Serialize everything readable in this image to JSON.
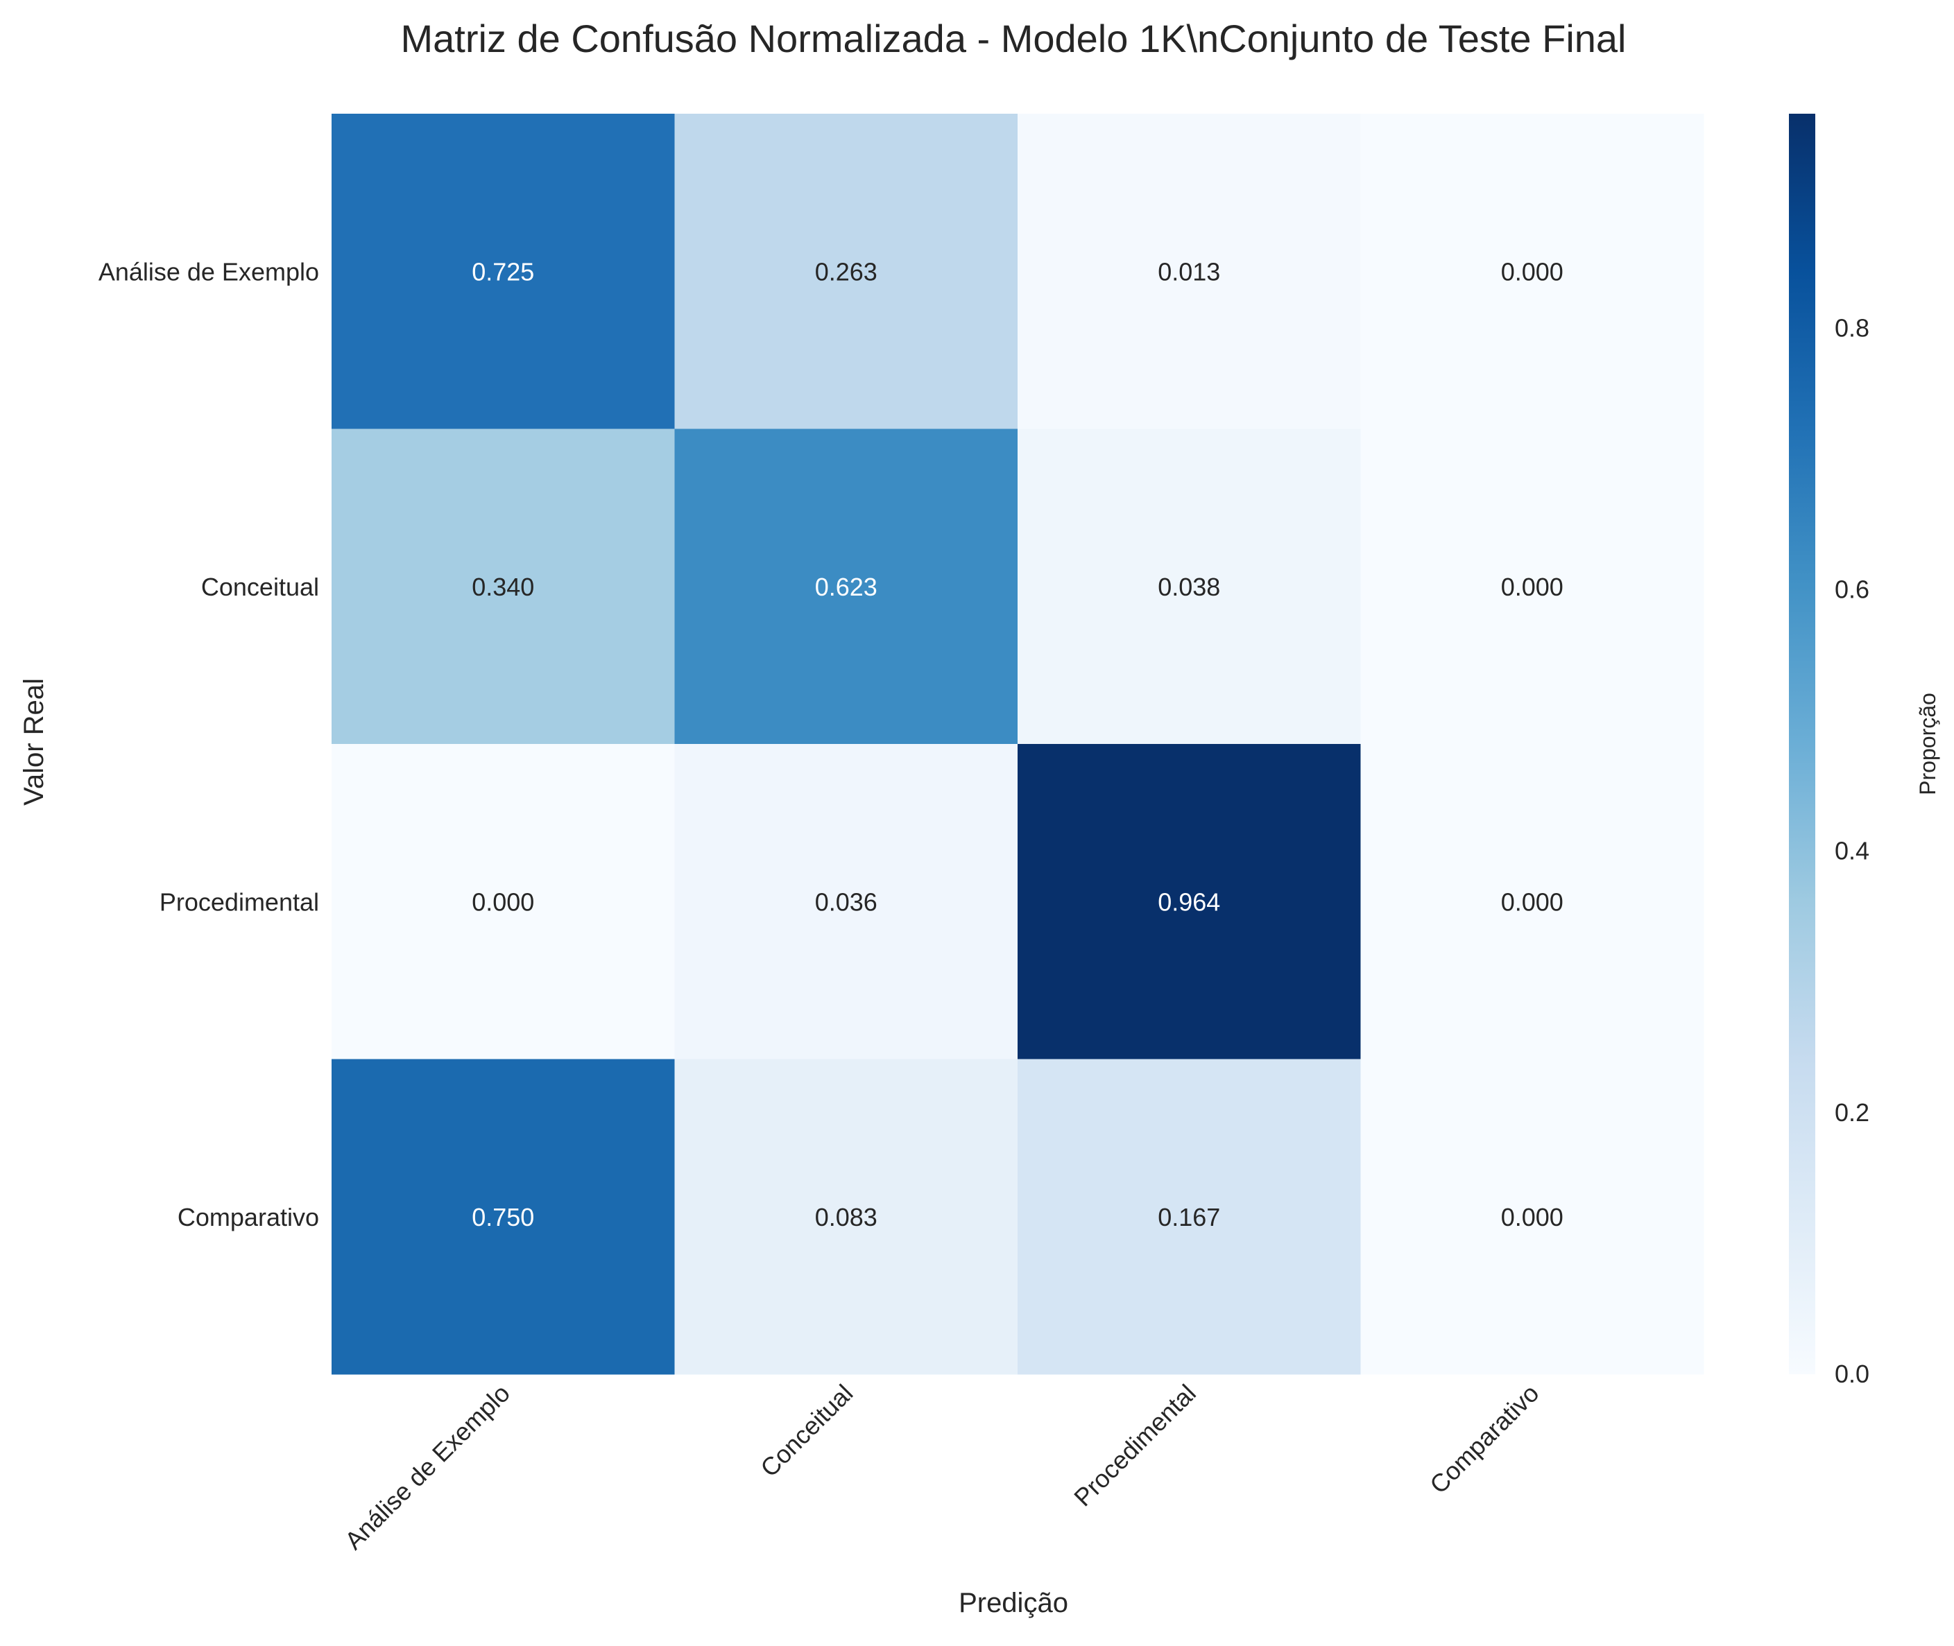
{
  "chart_data": {
    "type": "heatmap",
    "title": "Matriz de Confusão Normalizada - Modelo 1K\\nConjunto de Teste Final",
    "xlabel": "Predição",
    "ylabel": "Valor Real",
    "x_categories": [
      "Análise de Exemplo",
      "Conceitual",
      "Procedimental",
      "Comparativo"
    ],
    "y_categories": [
      "Análise de Exemplo",
      "Conceitual",
      "Procedimental",
      "Comparativo"
    ],
    "values": [
      [
        0.725,
        0.263,
        0.013,
        0.0
      ],
      [
        0.34,
        0.623,
        0.038,
        0.0
      ],
      [
        0.0,
        0.036,
        0.964,
        0.0
      ],
      [
        0.75,
        0.083,
        0.167,
        0.0
      ]
    ],
    "value_labels": [
      [
        "0.725",
        "0.263",
        "0.013",
        "0.000"
      ],
      [
        "0.340",
        "0.623",
        "0.038",
        "0.000"
      ],
      [
        "0.000",
        "0.036",
        "0.964",
        "0.000"
      ],
      [
        "0.750",
        "0.083",
        "0.167",
        "0.000"
      ]
    ],
    "colormap": "Blues",
    "vmin": 0.0,
    "vmax": 0.964,
    "colorbar": {
      "label": "Proporção",
      "ticks": [
        0.0,
        0.2,
        0.4,
        0.6,
        0.8
      ],
      "tick_labels": [
        "0.0",
        "0.2",
        "0.4",
        "0.6",
        "0.8"
      ]
    },
    "grid": false
  }
}
